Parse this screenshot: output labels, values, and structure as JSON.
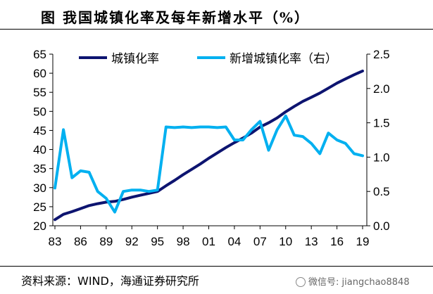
{
  "title": "图    我国城镇化率及每年新增水平（%）",
  "source": "资料来源：WIND，海通证券研究所",
  "watermark": "微信号: jiangchao8848",
  "colors": {
    "urbanization": "#0D1470",
    "increment": "#00B0F0"
  },
  "chart_data": {
    "type": "line",
    "title": "我国城镇化率及每年新增水平（%）",
    "categories": [
      "83",
      "84",
      "85",
      "86",
      "87",
      "88",
      "89",
      "90",
      "91",
      "92",
      "93",
      "94",
      "95",
      "96",
      "97",
      "98",
      "99",
      "00",
      "01",
      "02",
      "03",
      "04",
      "05",
      "06",
      "07",
      "08",
      "09",
      "10",
      "11",
      "12",
      "13",
      "14",
      "15",
      "16",
      "17",
      "18",
      "19"
    ],
    "x_tick_labels": [
      "83",
      "86",
      "89",
      "92",
      "95",
      "98",
      "01",
      "04",
      "07",
      "10",
      "13",
      "16",
      "19"
    ],
    "left_axis": {
      "ylim": [
        20,
        65
      ],
      "ticks": [
        "20",
        "25",
        "30",
        "35",
        "40",
        "45",
        "50",
        "55",
        "60",
        "65"
      ]
    },
    "right_axis": {
      "ylim": [
        0.0,
        2.5
      ],
      "ticks": [
        "0.0",
        "0.5",
        "1.0",
        "1.5",
        "2.0",
        "2.5"
      ]
    },
    "legend": [
      "城镇化率",
      "新增城镇化率（右）"
    ],
    "series": [
      {
        "name": "城镇化率",
        "axis": "left",
        "values": [
          21.6,
          23.0,
          23.7,
          24.5,
          25.3,
          25.8,
          26.2,
          26.4,
          26.9,
          27.5,
          28.0,
          28.5,
          29.0,
          30.5,
          31.9,
          33.4,
          34.8,
          36.2,
          37.7,
          39.1,
          40.5,
          41.8,
          43.0,
          44.3,
          45.9,
          47.0,
          48.3,
          49.9,
          51.3,
          52.6,
          53.7,
          54.8,
          56.1,
          57.4,
          58.5,
          59.6,
          60.6
        ]
      },
      {
        "name": "新增城镇化率（右）",
        "axis": "right",
        "values": [
          0.55,
          1.4,
          0.7,
          0.8,
          0.78,
          0.5,
          0.4,
          0.2,
          0.5,
          0.52,
          0.52,
          0.5,
          0.52,
          1.44,
          1.43,
          1.44,
          1.43,
          1.44,
          1.44,
          1.43,
          1.44,
          1.25,
          1.25,
          1.4,
          1.52,
          1.1,
          1.4,
          1.6,
          1.32,
          1.3,
          1.2,
          1.05,
          1.35,
          1.25,
          1.2,
          1.05,
          1.02
        ]
      }
    ]
  }
}
